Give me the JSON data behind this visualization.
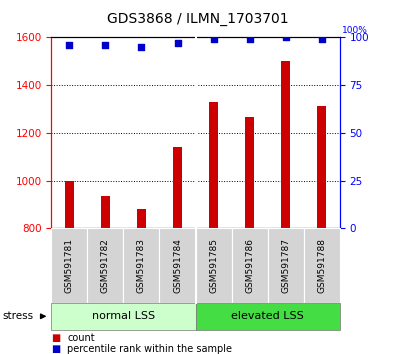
{
  "title": "GDS3868 / ILMN_1703701",
  "categories": [
    "GSM591781",
    "GSM591782",
    "GSM591783",
    "GSM591784",
    "GSM591785",
    "GSM591786",
    "GSM591787",
    "GSM591788"
  ],
  "bar_values": [
    1000,
    935,
    880,
    1140,
    1330,
    1265,
    1500,
    1310
  ],
  "percentile_values": [
    96,
    96,
    95,
    97,
    99,
    99,
    100,
    99
  ],
  "ylim_left": [
    800,
    1600
  ],
  "ylim_right": [
    0,
    100
  ],
  "yticks_left": [
    800,
    1000,
    1200,
    1400,
    1600
  ],
  "yticks_right": [
    0,
    25,
    50,
    75,
    100
  ],
  "bar_color": "#cc0000",
  "dot_color": "#0000cc",
  "bar_width": 0.25,
  "normal_group_color": "#ccffcc",
  "elevated_group_color": "#44dd44",
  "gray_color": "#d4d4d4",
  "legend_items": [
    {
      "color": "#cc0000",
      "label": "count"
    },
    {
      "color": "#0000cc",
      "label": "percentile rank within the sample"
    }
  ],
  "title_fontsize": 10,
  "tick_fontsize": 7.5,
  "label_fontsize": 7.5,
  "xticklabel_fontsize": 6.5,
  "group_fontsize": 8
}
